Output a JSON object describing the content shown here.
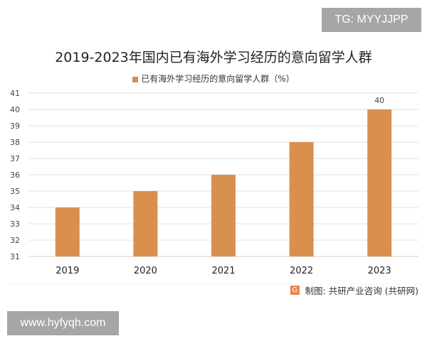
{
  "watermark_top": "TG: MYYJJPP",
  "watermark_bottom": "www.hyfyqh.com",
  "source": "制图: 共研产业咨询 (共研网)",
  "source_logo": "G",
  "chart_data": {
    "type": "bar",
    "title": "2019-2023年国内已有海外学习经历的意向留学人群",
    "categories": [
      "2019",
      "2020",
      "2021",
      "2022",
      "2023"
    ],
    "series": [
      {
        "name": "已有海外学习经历的意向留学人群（%）",
        "values": [
          34,
          35,
          36,
          38,
          40
        ],
        "color": "#d9904f"
      }
    ],
    "data_labels": {
      "2023": "40"
    },
    "ylim": [
      31,
      41
    ],
    "yticks": [
      31,
      32,
      33,
      34,
      35,
      36,
      37,
      38,
      39,
      40,
      41
    ],
    "grid": true,
    "legend": "top"
  }
}
